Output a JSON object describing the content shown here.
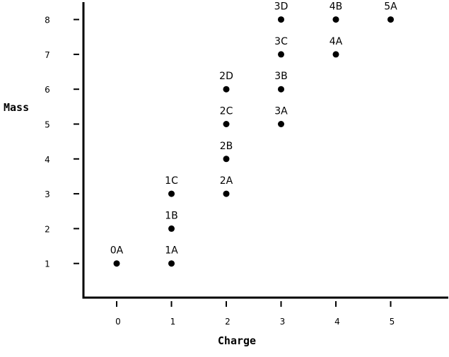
{
  "chart_data": {
    "type": "scatter",
    "title": "",
    "xlabel": "Charge",
    "ylabel": "Mass",
    "xlim": [
      -0.6,
      5.8
    ],
    "ylim": [
      0,
      9
    ],
    "xticks": [
      0,
      1,
      2,
      3,
      4,
      5
    ],
    "yticks": [
      1,
      2,
      3,
      4,
      5,
      6,
      7,
      8
    ],
    "grid": false,
    "colors": {
      "axis": "#000000",
      "point": "#000000"
    },
    "points": [
      {
        "label": "0A",
        "x": 0,
        "y": 1
      },
      {
        "label": "1A",
        "x": 1,
        "y": 1
      },
      {
        "label": "1B",
        "x": 1,
        "y": 2
      },
      {
        "label": "1C",
        "x": 1,
        "y": 3
      },
      {
        "label": "2A",
        "x": 2,
        "y": 3
      },
      {
        "label": "2B",
        "x": 2,
        "y": 4
      },
      {
        "label": "2C",
        "x": 2,
        "y": 5
      },
      {
        "label": "2D",
        "x": 2,
        "y": 6
      },
      {
        "label": "3A",
        "x": 3,
        "y": 5
      },
      {
        "label": "3B",
        "x": 3,
        "y": 6
      },
      {
        "label": "3C",
        "x": 3,
        "y": 7
      },
      {
        "label": "3D",
        "x": 3,
        "y": 8
      },
      {
        "label": "4A",
        "x": 4,
        "y": 7
      },
      {
        "label": "4B",
        "x": 4,
        "y": 8
      },
      {
        "label": "5A",
        "x": 5,
        "y": 8
      }
    ]
  }
}
